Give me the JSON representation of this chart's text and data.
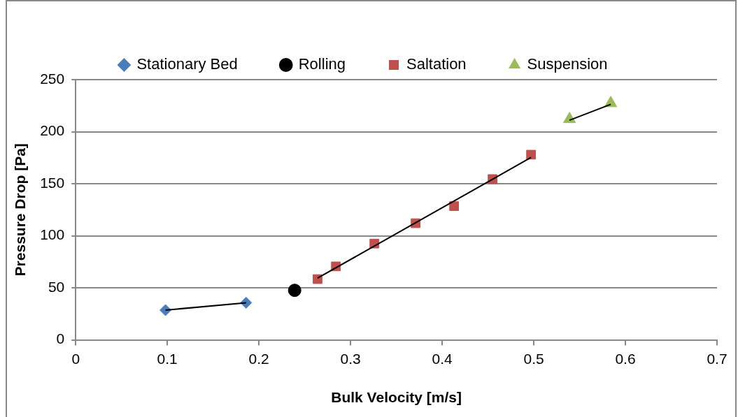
{
  "chart_data": {
    "type": "scatter",
    "xlabel": "Bulk Velocity [m/s]",
    "ylabel": "Pressure Drop [Pa]",
    "xlim": [
      0,
      0.7
    ],
    "xticks": [
      0,
      0.1,
      0.2,
      0.3,
      0.4,
      0.5,
      0.6,
      0.7
    ],
    "ylim": [
      0,
      250
    ],
    "yticks": [
      0,
      50,
      100,
      150,
      200,
      250
    ],
    "grid": "y",
    "legend": "top",
    "series": [
      {
        "name": "Stationary Bed",
        "color": "#4a7ebb",
        "marker": "diamond",
        "x": [
          0.098,
          0.186
        ],
        "values": [
          28.6,
          35.7
        ]
      },
      {
        "name": "Rolling",
        "color": "#000000",
        "marker": "circle",
        "x": [
          0.239
        ],
        "values": [
          47.6
        ]
      },
      {
        "name": "Saltation",
        "color": "#c0504d",
        "marker": "square",
        "x": [
          0.264,
          0.284,
          0.326,
          0.371,
          0.413,
          0.455,
          0.497
        ],
        "values": [
          58.4,
          70.6,
          92.5,
          112.1,
          128.5,
          154.5,
          177.9
        ]
      },
      {
        "name": "Suspension",
        "color": "#9bbb59",
        "marker": "triangle",
        "x": [
          0.539,
          0.584
        ],
        "values": [
          212,
          227.3
        ]
      },
      {
        "type": "line",
        "color": "#000000",
        "marker": "none",
        "x": [
          0.098,
          0.186
        ],
        "values": [
          28.6,
          35.7
        ]
      },
      {
        "type": "line",
        "color": "#000000",
        "marker": "none",
        "x": [
          0.264,
          0.497
        ],
        "values": [
          59.3,
          175.2
        ]
      },
      {
        "type": "line",
        "color": "#000000",
        "marker": "none",
        "x": [
          0.539,
          0.584
        ],
        "values": [
          211,
          226.3
        ]
      }
    ]
  }
}
